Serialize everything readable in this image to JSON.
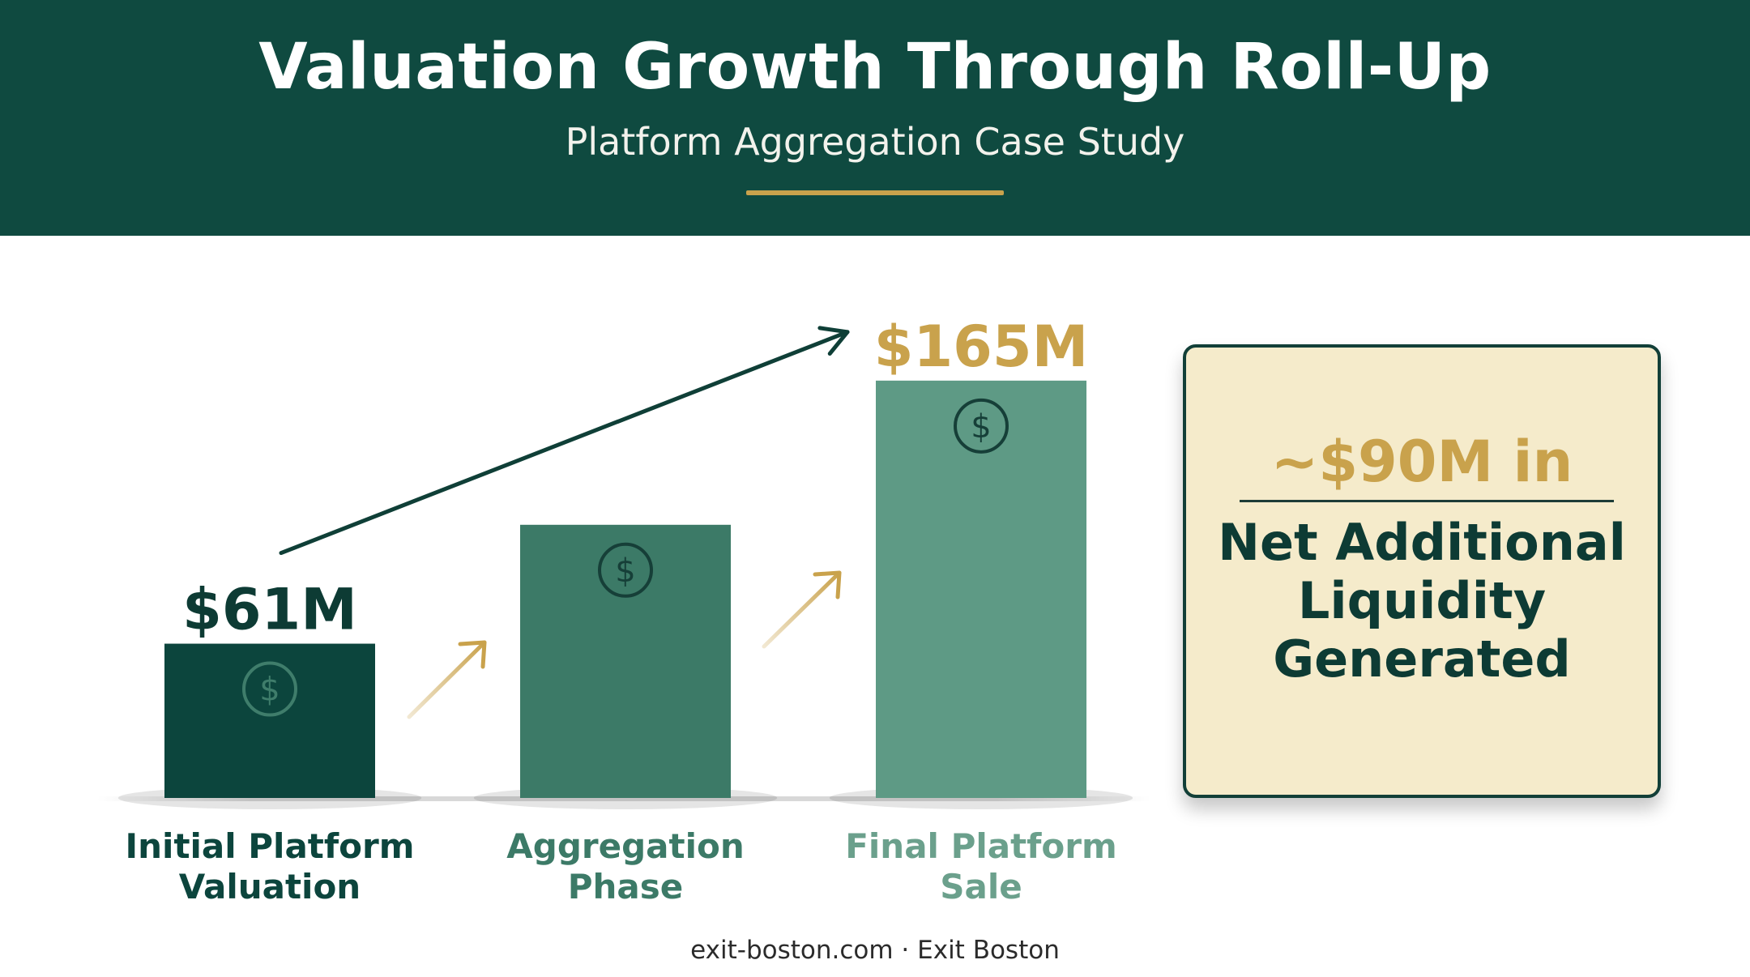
{
  "header": {
    "title": "Valuation Growth Through Roll-Up",
    "subtitle": "Platform Aggregation Case Study",
    "accent_color": "#c9a24c",
    "background_color": "#0f4a40"
  },
  "chart_data": {
    "type": "bar",
    "categories": [
      [
        "Initial Platform",
        "Valuation"
      ],
      [
        "Aggregation",
        "Phase"
      ],
      [
        "Final Platform",
        "Sale"
      ]
    ],
    "values": [
      61,
      108,
      165
    ],
    "data_labels": [
      "$61M",
      "",
      "$165M"
    ],
    "bar_colors": [
      "#0c453d",
      "#3c7a67",
      "#5e9a85"
    ],
    "label_colors": [
      "#0c453d",
      "#3c7a67",
      "#6ba08c"
    ],
    "value_label_colors": [
      "#0d3b34",
      "",
      "#c9a24c"
    ],
    "bar_icon": "dollar-circle-icon",
    "ylim": [
      0,
      180
    ],
    "grid": false,
    "legend": "none"
  },
  "callout": {
    "amount": "~$90M in",
    "text_lines": [
      "Net Additional",
      "Liquidity",
      "Generated"
    ],
    "background": "#f5ebcb",
    "border_color": "#123f38"
  },
  "footer": {
    "text": "exit-boston.com · Exit Boston"
  }
}
